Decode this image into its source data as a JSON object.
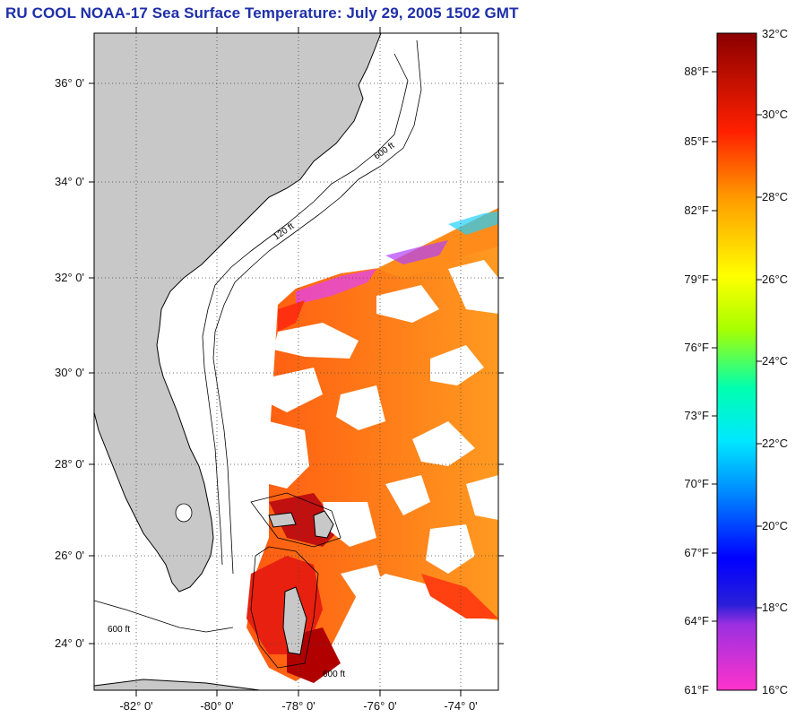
{
  "title": "RU COOL  NOAA-17  Sea Surface Temperature:  July 29, 2005 1502 GMT",
  "map": {
    "lat_labels": [
      "36° 0'",
      "34° 0'",
      "32° 0'",
      "30° 0'",
      "28° 0'",
      "26° 0'",
      "24° 0'"
    ],
    "lon_labels": [
      "-82° 0'",
      "-80° 0'",
      "-78° 0'",
      "-76° 0'",
      "-74° 0'"
    ],
    "lat_range": [
      23.0,
      37.0
    ],
    "lon_range": [
      -83.0,
      -73.0
    ],
    "isobath_labels": [
      "120 ft",
      "600 ft"
    ],
    "colors": {
      "land": "#c8c8c8",
      "ocean_nodata": "#ffffff",
      "grid": "#444444"
    }
  },
  "colorbar": {
    "celsius_labels": [
      "32°C",
      "30°C",
      "28°C",
      "26°C",
      "24°C",
      "22°C",
      "20°C",
      "18°C",
      "16°C"
    ],
    "fahrenheit_labels": [
      "88°F",
      "85°F",
      "82°F",
      "79°F",
      "76°F",
      "73°F",
      "70°F",
      "67°F",
      "64°F",
      "61°F"
    ],
    "range_c": [
      16,
      32
    ]
  }
}
